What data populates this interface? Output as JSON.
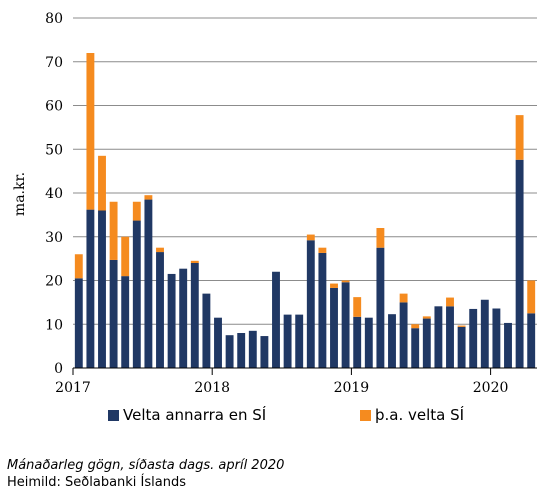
{
  "chart_data": {
    "type": "bar",
    "stacked": true,
    "ylabel": "ma.kr.",
    "ylim": [
      0,
      80
    ],
    "yticks": [
      0,
      10,
      20,
      30,
      40,
      50,
      60,
      70,
      80
    ],
    "xticks": [
      {
        "label": "2017",
        "index": 0
      },
      {
        "label": "2018",
        "index": 12
      },
      {
        "label": "2019",
        "index": 24
      },
      {
        "label": "2020",
        "index": 36
      }
    ],
    "grid": true,
    "legend_position": "bottom",
    "series": [
      {
        "name": "Velta annarra en SÍ",
        "color": "#203864",
        "values": [
          20.5,
          36.2,
          36.0,
          24.7,
          21.0,
          33.7,
          38.5,
          26.5,
          21.5,
          22.7,
          24.0,
          17.0,
          11.5,
          7.5,
          8.0,
          8.5,
          7.3,
          22.0,
          12.2,
          12.2,
          29.2,
          26.3,
          18.3,
          19.6,
          11.7,
          11.5,
          27.5,
          12.3,
          15.0,
          9.1,
          11.3,
          14.1,
          14.1,
          9.4,
          13.5,
          15.6,
          13.6,
          10.3,
          47.6,
          12.5
        ]
      },
      {
        "name": "þ.a. velta SÍ",
        "color": "#f58b1f",
        "values": [
          5.5,
          35.8,
          12.5,
          13.3,
          9.0,
          4.3,
          1.0,
          1.0,
          0,
          0,
          0.5,
          0,
          0,
          0,
          0,
          0,
          0,
          0,
          0,
          0,
          1.3,
          1.2,
          1.0,
          0.4,
          4.5,
          0,
          4.5,
          0,
          2.0,
          0.9,
          0.5,
          0,
          2.0,
          0.3,
          0,
          0,
          0,
          0,
          10.2,
          7.5
        ]
      }
    ]
  },
  "legend": {
    "item1": "Velta annarra en SÍ",
    "item2": "þ.a. velta SÍ"
  },
  "footnote": {
    "line1": "Mánaðarleg gögn, síðasta dags. apríl  2020",
    "line2": "Heimild: Seðlabanki Íslands"
  }
}
